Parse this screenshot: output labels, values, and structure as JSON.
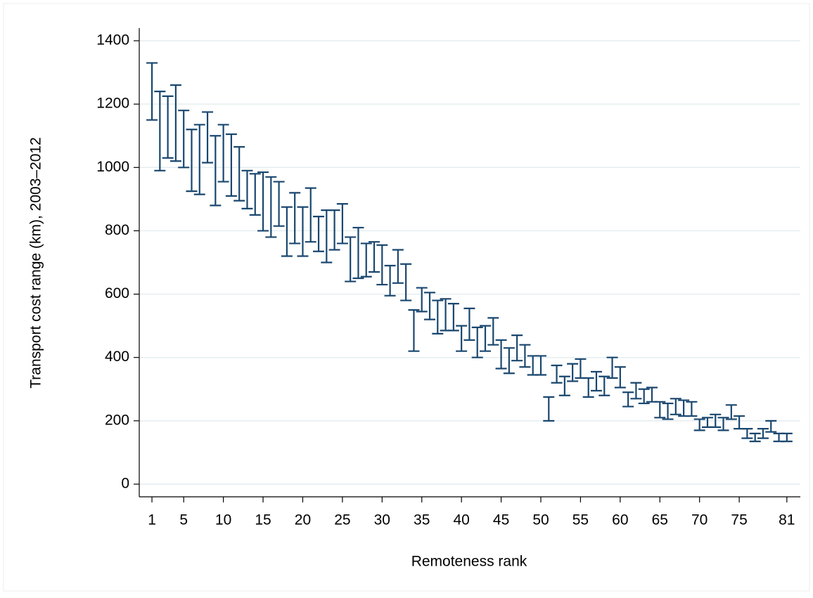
{
  "chart_data": {
    "type": "range",
    "x_label": "Remoteness rank",
    "y_label": "Transport cost range (km), 2003–2012",
    "color": "#1a476f",
    "grid": true,
    "xlim": [
      -0.6,
      82.7
    ],
    "ylim": [
      -40,
      1440
    ],
    "xticks": [
      1,
      5,
      10,
      15,
      20,
      25,
      30,
      35,
      40,
      45,
      50,
      55,
      60,
      65,
      70,
      75,
      81
    ],
    "yticks": [
      0,
      200,
      400,
      600,
      800,
      1000,
      1200,
      1400
    ],
    "x": [
      1,
      2,
      3,
      4,
      5,
      6,
      7,
      8,
      9,
      10,
      11,
      12,
      13,
      14,
      15,
      16,
      17,
      18,
      19,
      20,
      21,
      22,
      23,
      24,
      25,
      26,
      27,
      28,
      29,
      30,
      31,
      32,
      33,
      34,
      35,
      36,
      37,
      38,
      39,
      40,
      41,
      42,
      43,
      44,
      45,
      46,
      47,
      48,
      49,
      50,
      51,
      52,
      53,
      54,
      55,
      56,
      57,
      58,
      59,
      60,
      61,
      62,
      63,
      64,
      65,
      66,
      67,
      68,
      69,
      70,
      71,
      72,
      73,
      74,
      75,
      76,
      77,
      78,
      79,
      80,
      81
    ],
    "high": [
      1330,
      1240,
      1225,
      1260,
      1180,
      1120,
      1135,
      1175,
      1100,
      1135,
      1105,
      1065,
      990,
      980,
      985,
      970,
      955,
      875,
      920,
      875,
      935,
      845,
      865,
      865,
      885,
      780,
      810,
      760,
      765,
      755,
      690,
      740,
      695,
      550,
      620,
      605,
      580,
      585,
      570,
      500,
      555,
      495,
      500,
      525,
      455,
      430,
      470,
      440,
      405,
      405,
      275,
      375,
      340,
      380,
      395,
      335,
      355,
      340,
      400,
      370,
      290,
      320,
      300,
      305,
      260,
      255,
      270,
      265,
      260,
      205,
      210,
      220,
      210,
      250,
      215,
      175,
      160,
      175,
      200,
      160,
      160
    ],
    "low": [
      1150,
      990,
      1030,
      1020,
      1000,
      925,
      915,
      1015,
      880,
      955,
      910,
      895,
      870,
      850,
      800,
      780,
      815,
      720,
      760,
      720,
      765,
      735,
      700,
      740,
      760,
      640,
      650,
      655,
      670,
      630,
      595,
      635,
      580,
      420,
      545,
      520,
      475,
      485,
      485,
      420,
      455,
      400,
      420,
      440,
      365,
      350,
      390,
      370,
      345,
      345,
      200,
      320,
      280,
      325,
      335,
      275,
      295,
      280,
      335,
      305,
      245,
      270,
      255,
      260,
      210,
      205,
      220,
      215,
      215,
      170,
      180,
      180,
      170,
      205,
      175,
      145,
      135,
      145,
      165,
      135,
      135
    ]
  }
}
